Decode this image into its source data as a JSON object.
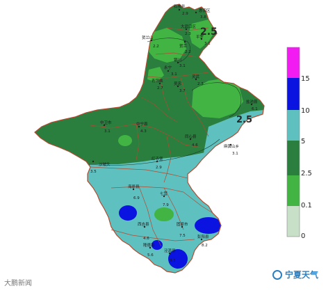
{
  "legend": {
    "bands": [
      {
        "label": "0",
        "color": "#c8dfc8"
      },
      {
        "label": "0.1",
        "color": "#41b444"
      },
      {
        "label": "2.5",
        "color": "#2a7e3e"
      },
      {
        "label": "5",
        "color": "#5fc0c0"
      },
      {
        "label": "10",
        "color": "#0a13e0"
      },
      {
        "label": "15",
        "color": "#f21cf2"
      }
    ]
  },
  "stations": [
    {
      "name": "石炭井",
      "value": "2.9"
    },
    {
      "name": "惠农区",
      "value": "3.8"
    },
    {
      "name": "大武口区",
      "value": "2.3"
    },
    {
      "name": "平罗",
      "value": "3.1"
    },
    {
      "name": "贺兰",
      "value": "2.2"
    },
    {
      "name": "贺兰山",
      "value": "2.2"
    },
    {
      "name": "永宁",
      "value": "3.1"
    },
    {
      "name": "银川",
      "value": "3.1"
    },
    {
      "name": "灵武",
      "value": "2.3"
    },
    {
      "name": "青铜峡",
      "value": "2.7"
    },
    {
      "name": "吴忠",
      "value": "3.7"
    },
    {
      "name": "中宁县",
      "value": "4.3"
    },
    {
      "name": "中卫市",
      "value": "3.1"
    },
    {
      "name": "盐池县",
      "value": "6.1"
    },
    {
      "name": "同心县",
      "value": "4.6"
    },
    {
      "name": "红寺堡",
      "value": "2.9"
    },
    {
      "name": "海原县",
      "value": "6.9"
    },
    {
      "name": "固原市",
      "value": "7.5"
    },
    {
      "name": "西吉县",
      "value": "4.6"
    },
    {
      "name": "隆德县",
      "value": "5.6"
    },
    {
      "name": "泾源县",
      "value": "9.1"
    },
    {
      "name": "彭阳县",
      "value": "8.2"
    },
    {
      "name": "沙坡头",
      "value": "3.5"
    },
    {
      "name": "麻黄山乡",
      "value": "3.1"
    },
    {
      "name": "七营",
      "value": "7.9"
    }
  ],
  "contour_labels": [
    "2.5",
    "2.5"
  ],
  "watermark_left": "大鹏新闻",
  "watermark_right": "宁夏天气"
}
